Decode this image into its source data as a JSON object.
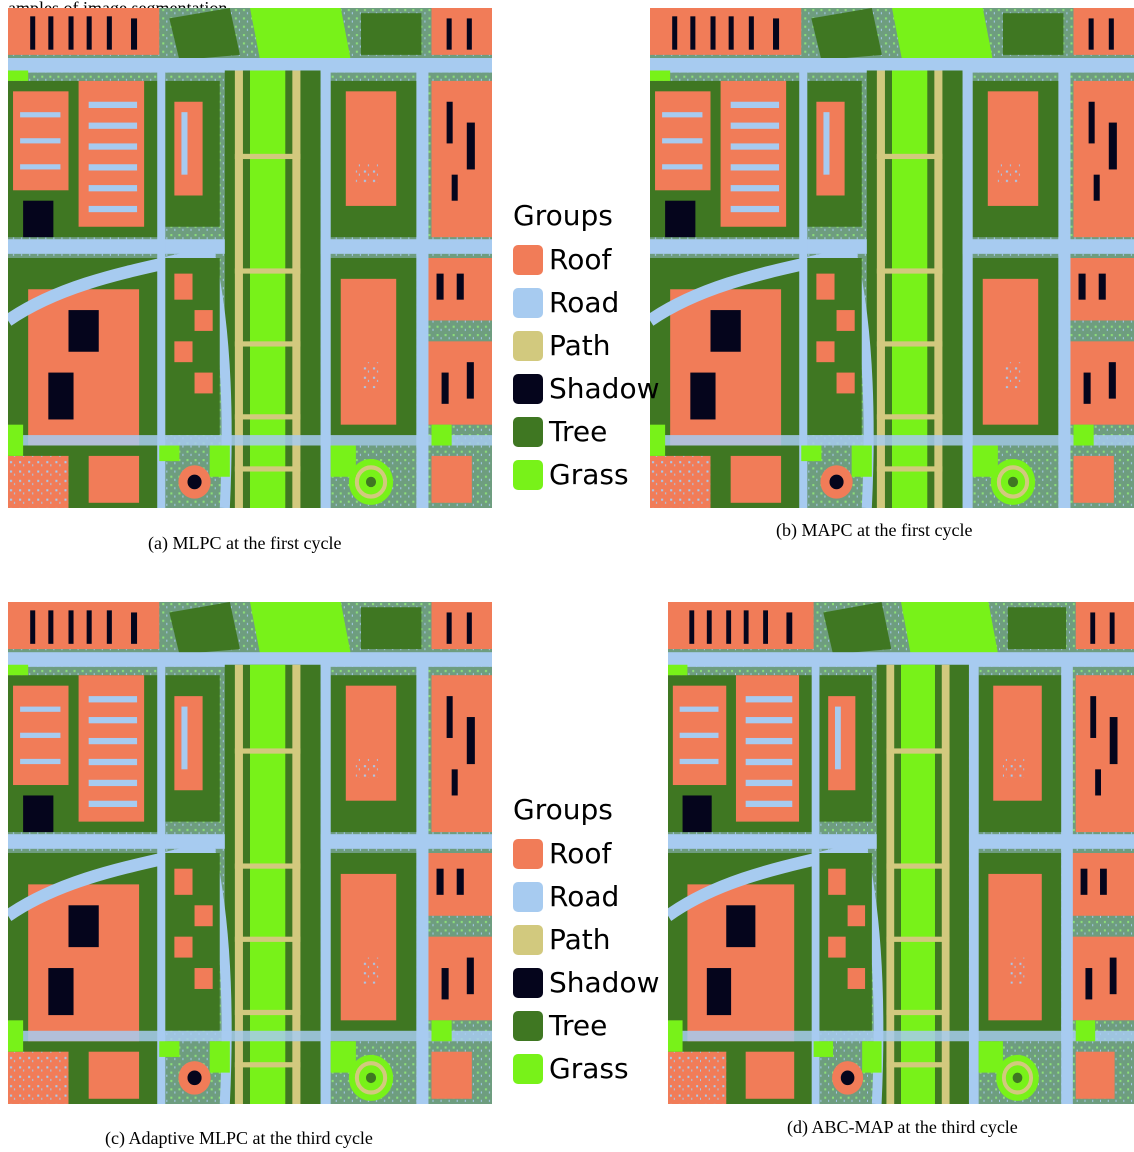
{
  "intro_text": "amples of image segmentation",
  "legend": {
    "title": "Groups",
    "classes": [
      {
        "label": "Roof",
        "color": "#F17C58"
      },
      {
        "label": "Road",
        "color": "#A7CBF0"
      },
      {
        "label": "Path",
        "color": "#D2C97E"
      },
      {
        "label": "Shadow",
        "color": "#05051C"
      },
      {
        "label": "Tree",
        "color": "#3F7722"
      },
      {
        "label": "Grass",
        "color": "#78F219"
      }
    ]
  },
  "panels": [
    {
      "caption": "(a) MLPC at the first cycle"
    },
    {
      "caption": "(b) MAPC at the first cycle"
    },
    {
      "caption": "(c) Adaptive MLPC at the third cycle"
    },
    {
      "caption": "(d) ABC-MAP at the third cycle"
    }
  ]
}
